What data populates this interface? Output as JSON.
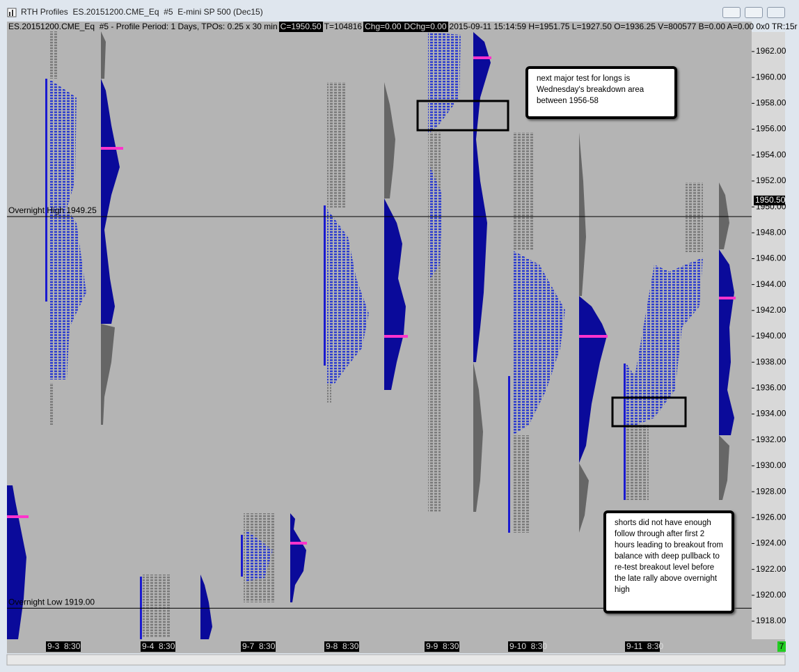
{
  "window": {
    "title": "RTH Profiles  ES.20151200.CME_Eq  #5  E-mini SP 500 (Dec15)"
  },
  "header": {
    "symbol": "ES.20151200.CME_Eq  #5 - Profile Period: 1 Days, TPOs: 0.25 x 30 min",
    "close": "C=1950.50",
    "ticks": "T=104816",
    "chg": "Chg=0.00",
    "dchg": "DChg=0.00",
    "stats": "2015-09-11 15:14:59 H=1951.75 L=1927.50 O=1936.25 V=800577 B=0.00 A=0.00 0x0 TR:15r"
  },
  "price_axis": {
    "ylim": [
      1962,
      1918
    ],
    "ticks": [
      {
        "value": 1962,
        "label": "1962.00"
      },
      {
        "value": 1960,
        "label": "1960.00"
      },
      {
        "value": 1958,
        "label": "1958.00"
      },
      {
        "value": 1956,
        "label": "1956.00"
      },
      {
        "value": 1954,
        "label": "1954.00"
      },
      {
        "value": 1952,
        "label": "1952.00"
      },
      {
        "value": 1950,
        "label": "1950.00"
      },
      {
        "value": 1948,
        "label": "1948.00"
      },
      {
        "value": 1946,
        "label": "1946.00"
      },
      {
        "value": 1944,
        "label": "1944.00"
      },
      {
        "value": 1942,
        "label": "1942.00"
      },
      {
        "value": 1940,
        "label": "1940.00"
      },
      {
        "value": 1938,
        "label": "1938.00"
      },
      {
        "value": 1936,
        "label": "1936.00"
      },
      {
        "value": 1934,
        "label": "1934.00"
      },
      {
        "value": 1932,
        "label": "1932.00"
      },
      {
        "value": 1930,
        "label": "1930.00"
      },
      {
        "value": 1928,
        "label": "1928.00"
      },
      {
        "value": 1926,
        "label": "1926.00"
      },
      {
        "value": 1924,
        "label": "1924.00"
      },
      {
        "value": 1922,
        "label": "1922.00"
      },
      {
        "value": 1920,
        "label": "1920.00"
      },
      {
        "value": 1918,
        "label": "1918.00"
      }
    ],
    "current": {
      "value": 1950.5,
      "label": "1950.50"
    }
  },
  "levels": [
    {
      "value": 1949.25,
      "label": "Overnight High  1949.25"
    },
    {
      "value": 1919,
      "label": "Overnight Low  1919.00"
    }
  ],
  "dates": [
    "9-3  8:30",
    "9-4  8:30",
    "9-7  8:30",
    "9-8  8:30",
    "9-9  8:30",
    "9-10  8:30",
    "9-11  8:30"
  ],
  "notes": [
    "next major test for longs is Wednesday's breakdown area between 1956-58",
    "shorts did not have enough follow through after first 2 hours leading to breakout from balance with deep pullback to re-test breakout level before the late rally above overnight high"
  ],
  "status": "7"
}
